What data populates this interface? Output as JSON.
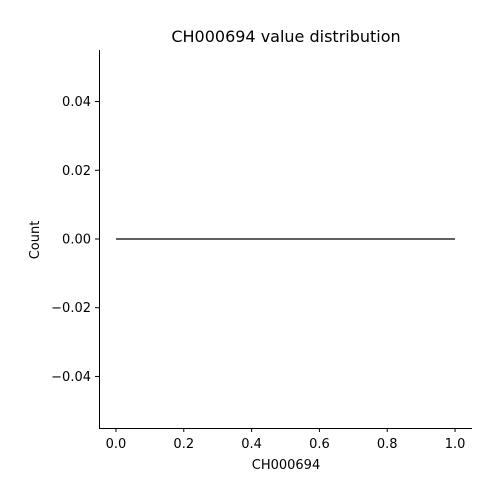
{
  "chart_data": {
    "type": "line",
    "title": "CH000694 value distribution",
    "xlabel": "CH000694",
    "ylabel": "Count",
    "x": [
      0.0,
      1.0
    ],
    "series": [
      {
        "values": [
          0.0,
          0.0
        ]
      }
    ],
    "xlim": [
      -0.05,
      1.05
    ],
    "ylim": [
      -0.055,
      0.055
    ],
    "xticks": [
      0.0,
      0.2,
      0.4,
      0.6,
      0.8,
      1.0
    ],
    "xtick_labels": [
      "0.0",
      "0.2",
      "0.4",
      "0.6",
      "0.8",
      "1.0"
    ],
    "yticks": [
      -0.04,
      -0.02,
      0.0,
      0.02,
      0.04
    ],
    "ytick_labels": [
      "−0.04",
      "−0.02",
      "0.00",
      "0.02",
      "0.04"
    ],
    "grid": false,
    "line_color": "#000000",
    "spines": [
      "left",
      "bottom"
    ]
  }
}
